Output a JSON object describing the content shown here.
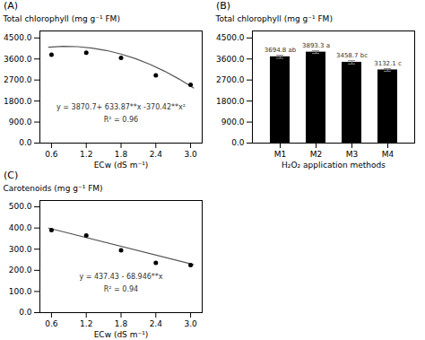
{
  "chart_data": [
    {
      "type": "scatter",
      "title": "(A)",
      "xlabel": "ECw (dS m⁻¹)",
      "ylabel": "Total chlorophyll (mg g⁻¹ FM)",
      "series": [
        {
          "type": "line",
          "x": [
            0.55,
            0.8,
            1.05,
            1.3,
            1.55,
            1.8,
            2.05,
            2.3,
            2.55,
            2.8,
            3.05
          ],
          "values": [
            4107.27645,
            4140.7272,
            4127.87545,
            4068.7212,
            3963.26445,
            3811.5052,
            3613.44345,
            3369.0792,
            3078.41245,
            2741.4432,
            2358.17145
          ]
        },
        {
          "type": "scatter",
          "x": [
            0.6,
            1.2,
            1.8,
            2.4,
            3.0
          ],
          "values": [
            3780,
            3870,
            3650,
            2900,
            2500
          ]
        }
      ],
      "annotations": [
        "y = 3870.7+ 633.87**x -370.42**x²",
        "R² = 0.96"
      ],
      "xlim": [
        0.4,
        3.2
      ],
      "xticks": [
        0.6,
        1.2,
        1.8,
        2.4,
        {
          "value": 3.0,
          "label": "3.0"
        }
      ],
      "ylim": [
        0,
        4800
      ],
      "yticks": [
        {
          "value": 0,
          "label": "0.0"
        },
        {
          "value": 900,
          "label": "900.0"
        },
        {
          "value": 1800,
          "label": "1800.0"
        },
        {
          "value": 2700,
          "label": "2700.0"
        },
        {
          "value": 3600,
          "label": "3600.0"
        },
        {
          "value": 4500,
          "label": "4500.0"
        }
      ]
    },
    {
      "type": "bar",
      "title": "(B)",
      "xlabel": "H₂O₂ application methods",
      "ylabel": "Total chlorophyll (mg g⁻¹ FM)",
      "categories": [
        "M1",
        "M2",
        "M3",
        "M4"
      ],
      "values": [
        3694.8,
        3893.3,
        3458.7,
        3132.1
      ],
      "errors": [
        65,
        58,
        70,
        55
      ],
      "value_labels": [
        "3694.8 ab",
        "3893.3 a",
        "3458.7 bc",
        "3132.1 c"
      ],
      "data_labels": true,
      "ylim": [
        0,
        4800
      ],
      "yticks": [
        {
          "value": 0,
          "label": "0.0"
        },
        {
          "value": 900,
          "label": "900.0"
        },
        {
          "value": 1800,
          "label": "1800.0"
        },
        {
          "value": 2700,
          "label": "2700.0"
        },
        {
          "value": 3600,
          "label": "3600.0"
        },
        {
          "value": 4500,
          "label": "4500.0"
        }
      ]
    },
    {
      "type": "scatter",
      "title": "(C)",
      "xlabel": "ECw (dS m⁻¹)",
      "ylabel": "Carotenoids (mg g⁻¹ FM)",
      "series": [
        {
          "type": "line",
          "x": [
            0.55,
            3.05
          ],
          "values": [
            399.5097,
            227.1447
          ]
        },
        {
          "type": "scatter",
          "x": [
            0.6,
            1.2,
            1.8,
            2.4,
            3.0
          ],
          "values": [
            390,
            365,
            295,
            235,
            225
          ]
        }
      ],
      "annotations": [
        "y = 437.43 - 68.946**x",
        "R² = 0.94"
      ],
      "xlim": [
        0.4,
        3.2
      ],
      "xticks": [
        0.6,
        1.2,
        1.8,
        2.4,
        {
          "value": 3.0,
          "label": "3.0"
        }
      ],
      "ylim": [
        0,
        530
      ],
      "yticks": [
        {
          "value": 0,
          "label": "0.0"
        },
        {
          "value": 100,
          "label": "100.0"
        },
        {
          "value": 200,
          "label": "200.0"
        },
        {
          "value": 300,
          "label": "300.0"
        },
        {
          "value": 400,
          "label": "400.0"
        },
        {
          "value": 500,
          "label": "500.0"
        }
      ]
    }
  ]
}
